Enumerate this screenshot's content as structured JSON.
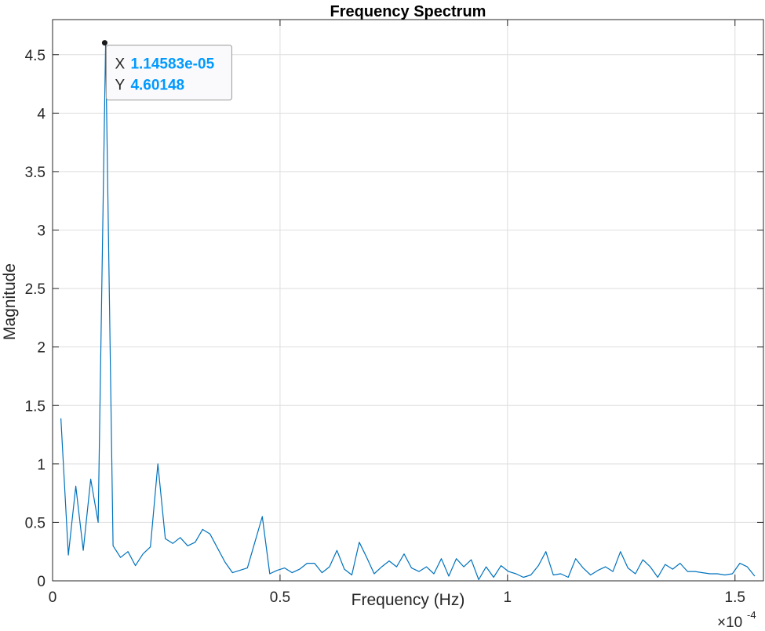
{
  "chart_data": {
    "type": "line",
    "title": "Frequency Spectrum",
    "xlabel": "Frequency (Hz)",
    "ylabel": "Magnitude",
    "x_exponent_label": "×10",
    "x_exponent_power": "-4",
    "xlim": [
      0,
      1.5625
    ],
    "ylim": [
      0,
      4.8
    ],
    "x_ticks": [
      0,
      0.5,
      1,
      1.5
    ],
    "x_tick_labels": [
      "0",
      "0.5",
      "1",
      "1.5"
    ],
    "y_ticks": [
      0,
      0.5,
      1,
      1.5,
      2,
      2.5,
      3,
      3.5,
      4,
      4.5
    ],
    "y_tick_labels": [
      "0",
      "0.5",
      "1",
      "1.5",
      "2",
      "2.5",
      "3",
      "3.5",
      "4",
      "4.5"
    ],
    "grid": true,
    "line_color": "#0072BD",
    "series": [
      {
        "x_start": 0.0182,
        "x_step": 0.0164,
        "values": [
          1.39,
          0.22,
          0.81,
          0.26,
          0.87,
          0.5,
          4.6,
          0.3,
          0.2,
          0.25,
          0.13,
          0.23,
          0.29,
          1.0,
          0.36,
          0.32,
          0.37,
          0.3,
          0.33,
          0.44,
          0.4,
          0.28,
          0.16,
          0.07,
          0.09,
          0.11,
          0.33,
          0.55,
          0.06,
          0.09,
          0.11,
          0.07,
          0.1,
          0.15,
          0.15,
          0.07,
          0.12,
          0.26,
          0.1,
          0.05,
          0.33,
          0.2,
          0.06,
          0.12,
          0.17,
          0.12,
          0.23,
          0.11,
          0.08,
          0.12,
          0.06,
          0.19,
          0.04,
          0.19,
          0.12,
          0.18,
          0.01,
          0.12,
          0.03,
          0.13,
          0.08,
          0.06,
          0.03,
          0.05,
          0.13,
          0.25,
          0.05,
          0.06,
          0.03,
          0.19,
          0.11,
          0.05,
          0.09,
          0.12,
          0.08,
          0.25,
          0.11,
          0.06,
          0.18,
          0.12,
          0.03,
          0.14,
          0.1,
          0.15,
          0.08,
          0.08,
          0.07,
          0.06,
          0.06,
          0.05,
          0.06,
          0.15,
          0.12,
          0.04
        ]
      }
    ],
    "datatip": {
      "x_value": 0.114583,
      "y_value": 4.60148,
      "x_key": "X",
      "x_text": "1.14583e-05",
      "y_key": "Y",
      "y_text": "4.60148",
      "value_color": "#0099FF"
    }
  }
}
